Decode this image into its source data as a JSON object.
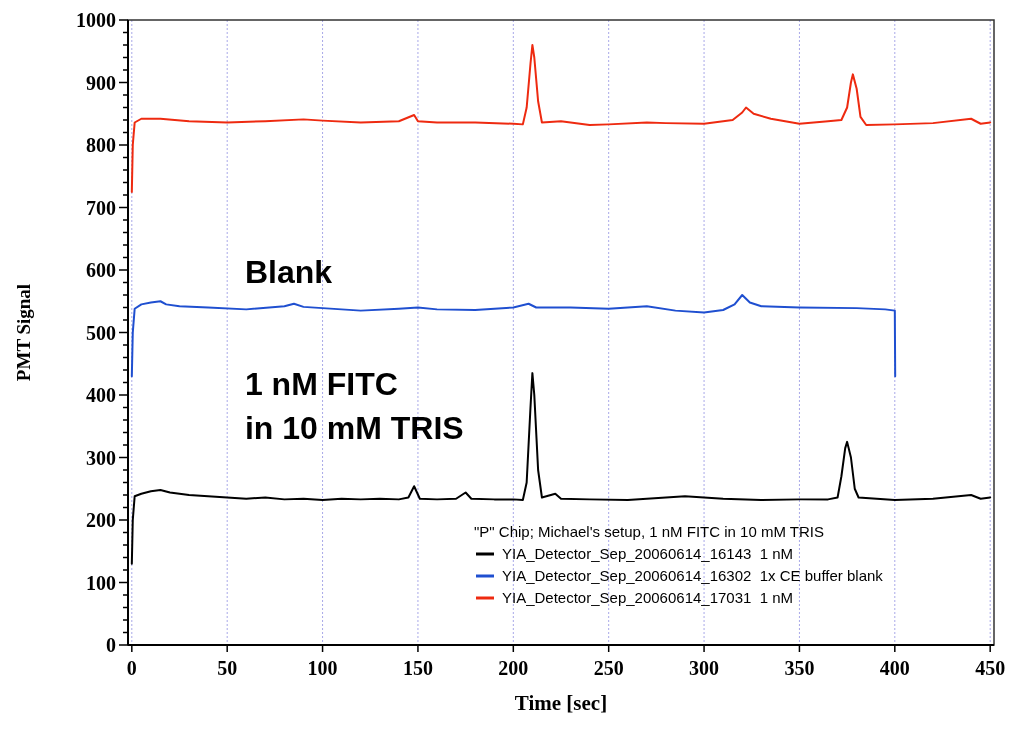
{
  "chart_data": {
    "type": "line",
    "xlabel": "Time [sec]",
    "ylabel": "PMT Signal",
    "legend_title": "\"P\" Chip; Michael's setup, 1 nM FITC in 10 mM TRIS",
    "legend": "bottom right",
    "grid": "x",
    "marker": "none",
    "line_style": "solid",
    "xlim": [
      -2,
      452
    ],
    "xticks": [
      0,
      50,
      100,
      150,
      200,
      250,
      300,
      350,
      400,
      450
    ],
    "ylim": [
      0,
      1000
    ],
    "yticks": [
      0,
      {
        "value": 20,
        "label": null
      },
      {
        "value": 40,
        "label": null
      },
      {
        "value": 60,
        "label": null
      },
      {
        "value": 80,
        "label": null
      },
      100,
      {
        "value": 120,
        "label": null
      },
      {
        "value": 140,
        "label": null
      },
      {
        "value": 160,
        "label": null
      },
      {
        "value": 180,
        "label": null
      },
      200,
      {
        "value": 220,
        "label": null
      },
      {
        "value": 240,
        "label": null
      },
      {
        "value": 260,
        "label": null
      },
      {
        "value": 280,
        "label": null
      },
      300,
      {
        "value": 320,
        "label": null
      },
      {
        "value": 340,
        "label": null
      },
      {
        "value": 360,
        "label": null
      },
      {
        "value": 380,
        "label": null
      },
      400,
      {
        "value": 420,
        "label": null
      },
      {
        "value": 440,
        "label": null
      },
      {
        "value": 460,
        "label": null
      },
      {
        "value": 480,
        "label": null
      },
      500,
      {
        "value": 520,
        "label": null
      },
      {
        "value": 540,
        "label": null
      },
      {
        "value": 560,
        "label": null
      },
      {
        "value": 580,
        "label": null
      },
      600,
      {
        "value": 620,
        "label": null
      },
      {
        "value": 640,
        "label": null
      },
      {
        "value": 660,
        "label": null
      },
      {
        "value": 680,
        "label": null
      },
      700,
      {
        "value": 720,
        "label": null
      },
      {
        "value": 740,
        "label": null
      },
      {
        "value": 760,
        "label": null
      },
      {
        "value": 780,
        "label": null
      },
      800,
      {
        "value": 820,
        "label": null
      },
      {
        "value": 840,
        "label": null
      },
      {
        "value": 860,
        "label": null
      },
      {
        "value": 880,
        "label": null
      },
      900,
      {
        "value": 920,
        "label": null
      },
      {
        "value": 940,
        "label": null
      },
      {
        "value": 960,
        "label": null
      },
      {
        "value": 980,
        "label": null
      },
      1000
    ],
    "annotations": [
      "Blank",
      "1 nM FITC\nin 10 mM TRIS"
    ],
    "series": [
      {
        "name": "YIA_Detector_Sep_20060614_16143  1 nM",
        "color": "#000000",
        "x": [
          0,
          0.5,
          1.5,
          5,
          10,
          15,
          20,
          30,
          40,
          50,
          60,
          70,
          80,
          90,
          100,
          110,
          120,
          130,
          140,
          145,
          148,
          151,
          160,
          170,
          175,
          178,
          190,
          200,
          205,
          207,
          209,
          210,
          211,
          213,
          215,
          222,
          225,
          240,
          260,
          280,
          290,
          300,
          310,
          330,
          350,
          365,
          370,
          372,
          374,
          375,
          377,
          379,
          381,
          400,
          420,
          440,
          445,
          450
        ],
        "values": [
          130,
          200,
          238,
          242,
          246,
          248,
          244,
          240,
          238,
          236,
          234,
          236,
          233,
          234,
          232,
          234,
          233,
          234,
          233,
          236,
          254,
          234,
          233,
          234,
          244,
          234,
          233,
          233,
          232,
          260,
          380,
          435,
          400,
          280,
          236,
          242,
          234,
          233,
          232,
          236,
          238,
          236,
          234,
          232,
          233,
          233,
          236,
          270,
          315,
          325,
          300,
          250,
          236,
          232,
          234,
          240,
          234,
          236
        ]
      },
      {
        "name": "YIA_Detector_Sep_20060614_16302  1x CE buffer blank",
        "color": "#1f4fd0",
        "x": [
          0,
          0.5,
          1.5,
          5,
          10,
          15,
          18,
          25,
          40,
          60,
          80,
          85,
          90,
          110,
          120,
          140,
          150,
          160,
          180,
          200,
          208,
          212,
          230,
          250,
          270,
          285,
          300,
          310,
          316,
          320,
          324,
          330,
          350,
          380,
          395,
          400,
          400.2
        ],
        "values": [
          430,
          500,
          538,
          545,
          548,
          550,
          545,
          542,
          540,
          537,
          542,
          546,
          541,
          537,
          535,
          538,
          540,
          537,
          536,
          540,
          546,
          540,
          540,
          538,
          542,
          535,
          532,
          536,
          545,
          560,
          548,
          542,
          540,
          539,
          537,
          535,
          430
        ]
      },
      {
        "name": "YIA_Detector_Sep_20060614_17031  1 nM",
        "color": "#ee2a10",
        "x": [
          0,
          0.5,
          1.5,
          5,
          15,
          30,
          50,
          70,
          90,
          100,
          120,
          140,
          148,
          150,
          160,
          180,
          200,
          205,
          207,
          209,
          210,
          211,
          213,
          215,
          225,
          240,
          250,
          270,
          280,
          300,
          315,
          320,
          322,
          326,
          335,
          350,
          365,
          372,
          375,
          377,
          378,
          380,
          382,
          385,
          400,
          420,
          440,
          445,
          450
        ],
        "values": [
          725,
          800,
          836,
          842,
          842,
          838,
          836,
          838,
          841,
          839,
          836,
          838,
          848,
          838,
          836,
          836,
          834,
          833,
          860,
          930,
          960,
          940,
          870,
          836,
          838,
          832,
          833,
          836,
          835,
          834,
          840,
          852,
          860,
          850,
          842,
          834,
          838,
          840,
          860,
          900,
          913,
          890,
          845,
          832,
          833,
          835,
          842,
          834,
          836
        ]
      }
    ]
  }
}
